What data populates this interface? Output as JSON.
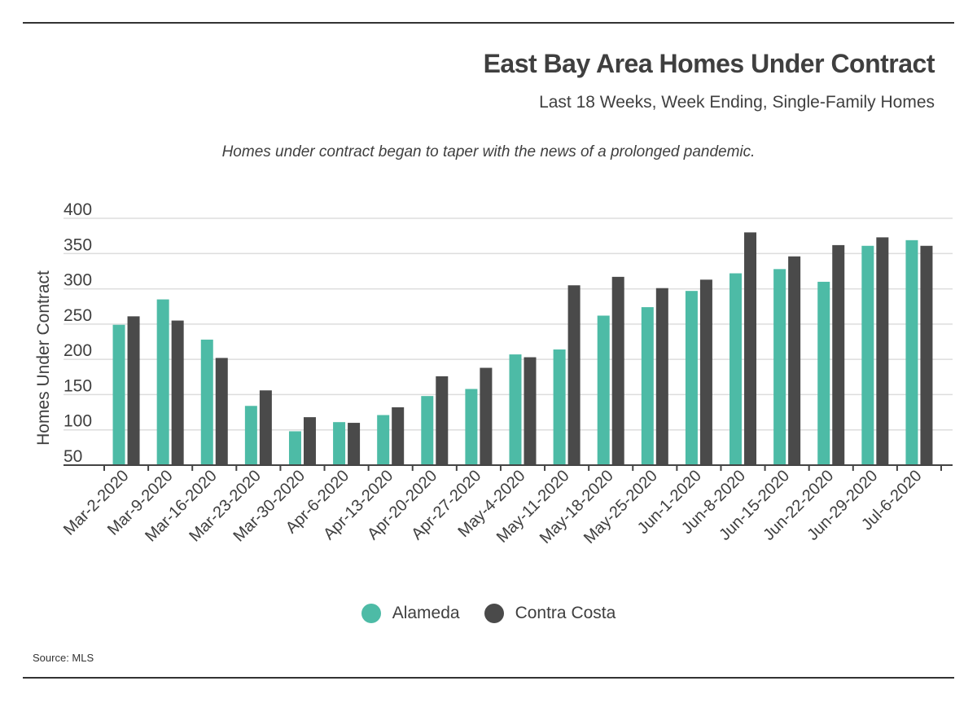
{
  "title": "East Bay Area Homes Under Contract",
  "subtitle": "Last 18 Weeks, Week Ending, Single-Family Homes",
  "annotation": "Homes under contract began to taper with the news of a prolonged pandemic.",
  "source": "Source: MLS",
  "colors": {
    "Alameda": "#4dbba6",
    "Contra Costa": "#4a4a4a",
    "grid": "#dddddd",
    "axis": "#444444"
  },
  "chart_data": {
    "type": "bar",
    "ylabel": "Homes Under Contract",
    "xlabel": "",
    "ylim": [
      50,
      400
    ],
    "yticks": [
      50,
      100,
      150,
      200,
      250,
      300,
      350,
      400
    ],
    "grid": true,
    "legend_position": "bottom-center",
    "categories": [
      "Mar-2-2020",
      "Mar-9-2020",
      "Mar-16-2020",
      "Mar-23-2020",
      "Mar-30-2020",
      "Apr-6-2020",
      "Apr-13-2020",
      "Apr-20-2020",
      "Apr-27-2020",
      "May-4-2020",
      "May-11-2020",
      "May-18-2020",
      "May-25-2020",
      "Jun-1-2020",
      "Jun-8-2020",
      "Jun-15-2020",
      "Jun-22-2020",
      "Jun-29-2020",
      "Jul-6-2020"
    ],
    "series": [
      {
        "name": "Alameda",
        "values": [
          249,
          285,
          228,
          134,
          98,
          111,
          121,
          148,
          158,
          207,
          214,
          262,
          274,
          297,
          322,
          328,
          310,
          361,
          369
        ]
      },
      {
        "name": "Contra Costa",
        "values": [
          261,
          255,
          202,
          156,
          118,
          110,
          132,
          176,
          188,
          203,
          305,
          317,
          301,
          313,
          380,
          346,
          362,
          373,
          361
        ]
      }
    ]
  }
}
